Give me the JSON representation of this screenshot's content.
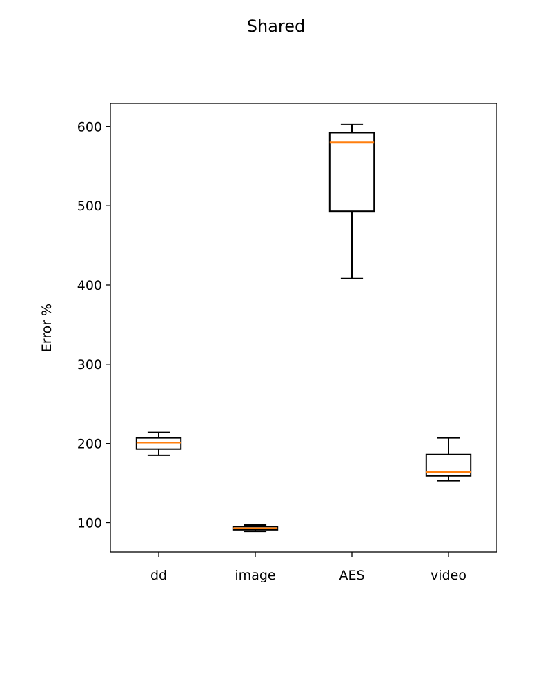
{
  "chart_data": {
    "type": "boxplot",
    "title": "Shared",
    "xlabel": "",
    "ylabel": "Error %",
    "ylim": [
      63,
      629
    ],
    "yticks": [
      100,
      200,
      300,
      400,
      500,
      600
    ],
    "categories": [
      "dd",
      "image",
      "AES",
      "video"
    ],
    "boxes": [
      {
        "label": "dd",
        "whisker_low": 185,
        "q1": 193,
        "median": 201,
        "q3": 207,
        "whisker_high": 214
      },
      {
        "label": "image",
        "whisker_low": 89,
        "q1": 91,
        "median": 93,
        "q3": 95,
        "whisker_high": 97
      },
      {
        "label": "AES",
        "whisker_low": 408,
        "q1": 493,
        "median": 580,
        "q3": 592,
        "whisker_high": 603
      },
      {
        "label": "video",
        "whisker_low": 153,
        "q1": 159,
        "median": 164,
        "q3": 186,
        "whisker_high": 207
      }
    ],
    "grid": false,
    "colors": {
      "box": "#000000",
      "median": "#ff7f0e"
    }
  }
}
